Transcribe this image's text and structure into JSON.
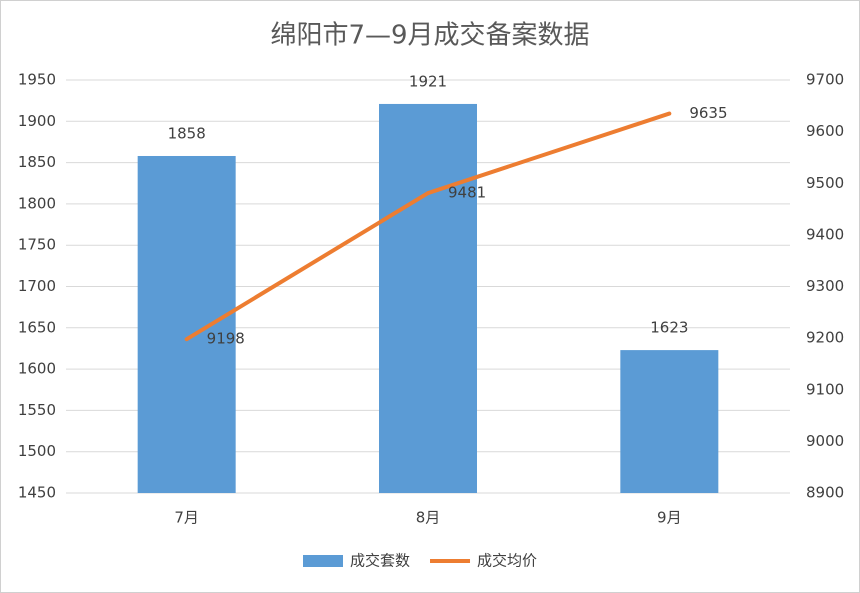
{
  "chart_data": {
    "type": "combo",
    "title": "绵阳市7—9月成交备案数据",
    "categories": [
      "7月",
      "8月",
      "9月"
    ],
    "series": [
      {
        "name": "成交套数",
        "type": "bar",
        "color": "#5b9bd5",
        "values": [
          1858,
          1921,
          1623
        ]
      },
      {
        "name": "成交均价",
        "type": "line",
        "axis": "y2",
        "color": "#ed7d31",
        "values": [
          9198,
          9481,
          9635
        ]
      }
    ],
    "ylim": [
      1450,
      1950
    ],
    "yticks": [
      1450,
      1500,
      1550,
      1600,
      1650,
      1700,
      1750,
      1800,
      1850,
      1900,
      1950
    ],
    "y2lim": [
      8900,
      9700
    ],
    "y2ticks": [
      8900,
      9000,
      9100,
      9200,
      9300,
      9400,
      9500,
      9600,
      9700
    ],
    "grid": true,
    "legend": "bottom"
  }
}
